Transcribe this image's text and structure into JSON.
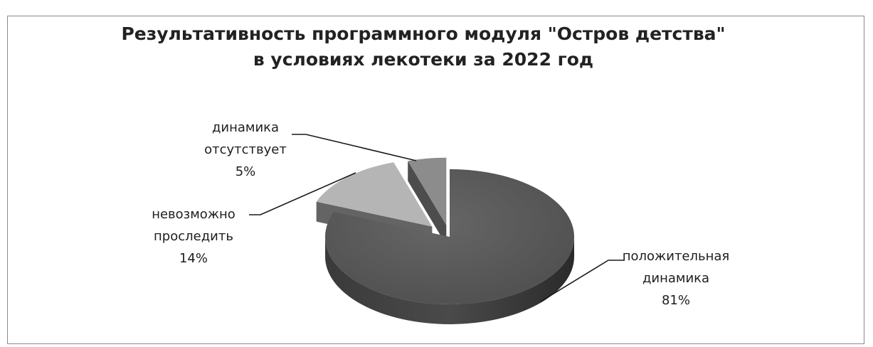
{
  "chart_data": {
    "type": "pie",
    "title_lines": [
      "Результативность программного модуля \"Остров детства\"",
      "в условиях лекотеки за 2022 год"
    ],
    "slices": [
      {
        "label_lines": [
          "положительная",
          "динамика"
        ],
        "percent_label": "81%",
        "value": 81,
        "color": "#555555"
      },
      {
        "label_lines": [
          "невозможно",
          "проследить"
        ],
        "percent_label": "14%",
        "value": 14,
        "color": "#b5b5b5"
      },
      {
        "label_lines": [
          "динамика",
          "отсутствует"
        ],
        "percent_label": "5%",
        "value": 5,
        "color": "#8c8c8c"
      }
    ],
    "legend": "none",
    "style": "3d-exploded-pie"
  }
}
